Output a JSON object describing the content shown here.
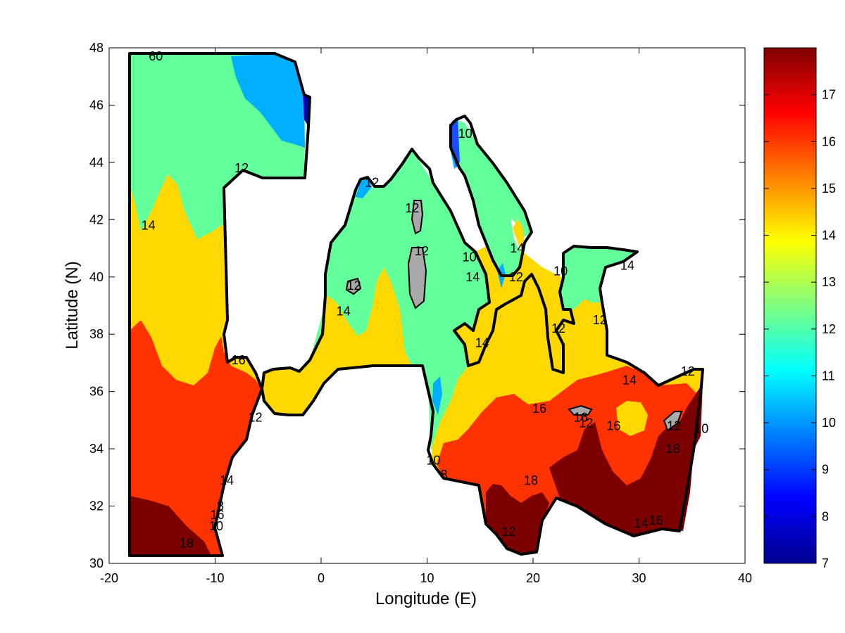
{
  "chart_data": {
    "type": "contour-map",
    "xlabel": "Longitude (E)",
    "ylabel": "Latitude (N)",
    "xlim": [
      -20,
      40
    ],
    "ylim": [
      30,
      48
    ],
    "xticks": [
      -20,
      -10,
      0,
      10,
      20,
      30,
      40
    ],
    "yticks": [
      30,
      32,
      34,
      36,
      38,
      40,
      42,
      44,
      46,
      48
    ],
    "colorbar": {
      "range": [
        7,
        18
      ],
      "ticks": [
        7,
        8,
        9,
        10,
        11,
        12,
        13,
        14,
        15,
        16,
        17
      ],
      "colormap": "jet"
    },
    "level_colors": {
      "6": "#0000b8",
      "8": "#1a4bff",
      "10": "#00b0ff",
      "12": "#62ff9b",
      "14": "#ffd800",
      "16": "#ff3300",
      "18": "#7d0000",
      "land": "#a9a9a9"
    },
    "contour_labels": [
      {
        "text": "12",
        "lon": -7.5,
        "lat": 43.8
      },
      {
        "text": "14",
        "lon": -16.3,
        "lat": 41.8
      },
      {
        "text": "16",
        "lon": -7.8,
        "lat": 37.1
      },
      {
        "text": "12",
        "lon": -6.2,
        "lat": 35.1
      },
      {
        "text": "14",
        "lon": -8.9,
        "lat": 32.9
      },
      {
        "text": "8",
        "lon": -9.5,
        "lat": 32.0
      },
      {
        "text": "16",
        "lon": -9.8,
        "lat": 31.7
      },
      {
        "text": "10",
        "lon": -9.9,
        "lat": 31.3
      },
      {
        "text": "18",
        "lon": -12.7,
        "lat": 30.7
      },
      {
        "text": "60",
        "lon": -15.6,
        "lat": 47.7
      },
      {
        "text": "12",
        "lon": 4.8,
        "lat": 43.3
      },
      {
        "text": "12",
        "lon": 8.6,
        "lat": 42.4
      },
      {
        "text": "12",
        "lon": 9.5,
        "lat": 40.9
      },
      {
        "text": "12",
        "lon": 3.1,
        "lat": 39.7
      },
      {
        "text": "14",
        "lon": 2.1,
        "lat": 38.8
      },
      {
        "text": "10",
        "lon": 14.0,
        "lat": 40.7
      },
      {
        "text": "14",
        "lon": 14.3,
        "lat": 40.0
      },
      {
        "text": "10",
        "lon": 13.6,
        "lat": 45.0
      },
      {
        "text": "14",
        "lon": 18.5,
        "lat": 41.0
      },
      {
        "text": "12",
        "lon": 18.4,
        "lat": 40.0
      },
      {
        "text": "14",
        "lon": 15.2,
        "lat": 37.7
      },
      {
        "text": "10",
        "lon": 22.6,
        "lat": 40.2
      },
      {
        "text": "14",
        "lon": 28.9,
        "lat": 40.4
      },
      {
        "text": "12",
        "lon": 22.4,
        "lat": 38.2
      },
      {
        "text": "12",
        "lon": 26.3,
        "lat": 38.5
      },
      {
        "text": "14",
        "lon": 29.1,
        "lat": 36.4
      },
      {
        "text": "16",
        "lon": 20.6,
        "lat": 35.4
      },
      {
        "text": "16",
        "lon": 27.6,
        "lat": 34.8
      },
      {
        "text": "12",
        "lon": 25.0,
        "lat": 34.9
      },
      {
        "text": "16",
        "lon": 24.5,
        "lat": 35.1
      },
      {
        "text": "18",
        "lon": 33.2,
        "lat": 34.0
      },
      {
        "text": "10",
        "lon": 35.9,
        "lat": 34.7
      },
      {
        "text": "12",
        "lon": 33.3,
        "lat": 34.8
      },
      {
        "text": "12",
        "lon": 34.6,
        "lat": 36.7
      },
      {
        "text": "10",
        "lon": 10.6,
        "lat": 33.6
      },
      {
        "text": "8",
        "lon": 11.6,
        "lat": 33.1
      },
      {
        "text": "18",
        "lon": 19.8,
        "lat": 32.9
      },
      {
        "text": "12",
        "lon": 17.7,
        "lat": 31.1
      },
      {
        "text": "14",
        "lon": 30.2,
        "lat": 31.4
      },
      {
        "text": "16",
        "lon": 31.6,
        "lat": 31.5
      }
    ]
  }
}
